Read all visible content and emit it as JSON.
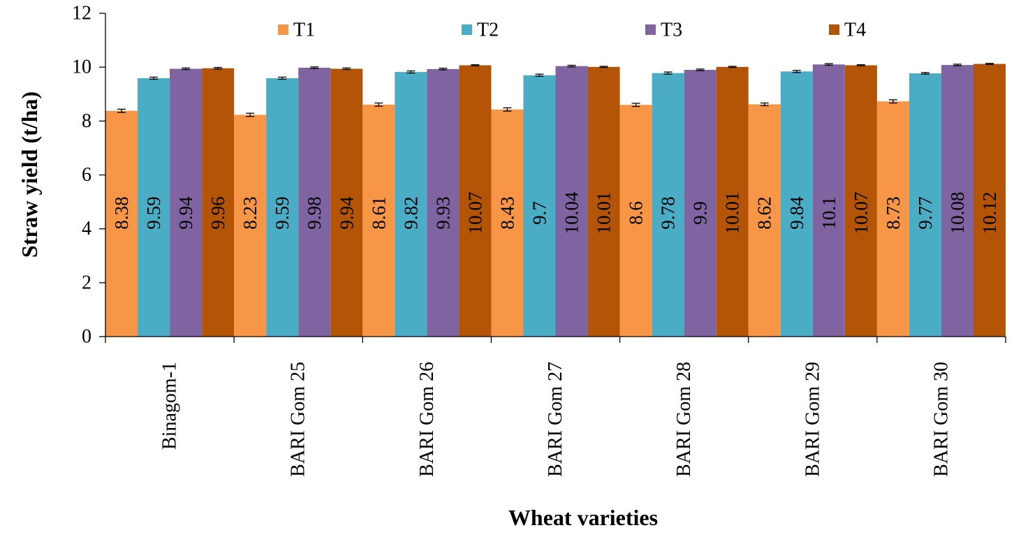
{
  "chart_data": {
    "type": "bar",
    "title": "",
    "xlabel": "Wheat varieties",
    "ylabel": "Straw yield (t/ha)",
    "ylim": [
      0,
      12
    ],
    "yticks": [
      "0",
      "2",
      "4",
      "6",
      "8",
      "10",
      "12"
    ],
    "grid": false,
    "legend_position": "top",
    "categories": [
      "Binagom-1",
      "BARI Gom 25",
      "BARI Gom 26",
      "BARI Gom 27",
      "BARI Gom 28",
      "BARI Gom 29",
      "BARI Gom 30"
    ],
    "series": [
      {
        "name": "T1",
        "color": "#F79646",
        "values": [
          8.38,
          8.23,
          8.61,
          8.43,
          8.6,
          8.62,
          8.73
        ],
        "labels": [
          "8.38",
          "8.23",
          "8.61",
          "8.43",
          "8.6",
          "8.62",
          "8.73"
        ],
        "errors": [
          0.06,
          0.06,
          0.06,
          0.06,
          0.06,
          0.05,
          0.06
        ]
      },
      {
        "name": "T2",
        "color": "#4BACC6",
        "values": [
          9.59,
          9.59,
          9.82,
          9.7,
          9.78,
          9.84,
          9.77
        ],
        "labels": [
          "9.59",
          "9.59",
          "9.82",
          "9.7",
          "9.78",
          "9.84",
          "9.77"
        ],
        "errors": [
          0.04,
          0.04,
          0.04,
          0.04,
          0.04,
          0.04,
          0.03
        ]
      },
      {
        "name": "T3",
        "color": "#8064A2",
        "values": [
          9.94,
          9.98,
          9.93,
          10.04,
          9.9,
          10.1,
          10.08
        ],
        "labels": [
          "9.94",
          "9.98",
          "9.93",
          "10.04",
          "9.9",
          "10.1",
          "10.08"
        ],
        "errors": [
          0.03,
          0.03,
          0.03,
          0.03,
          0.03,
          0.03,
          0.03
        ]
      },
      {
        "name": "T4",
        "color": "#B35407",
        "values": [
          9.96,
          9.94,
          10.07,
          10.01,
          10.01,
          10.07,
          10.12
        ],
        "labels": [
          "9.96",
          "9.94",
          "10.07",
          "10.01",
          "10.01",
          "10.07",
          "10.12"
        ],
        "errors": [
          0.03,
          0.03,
          0.02,
          0.02,
          0.02,
          0.02,
          0.02
        ]
      }
    ]
  }
}
